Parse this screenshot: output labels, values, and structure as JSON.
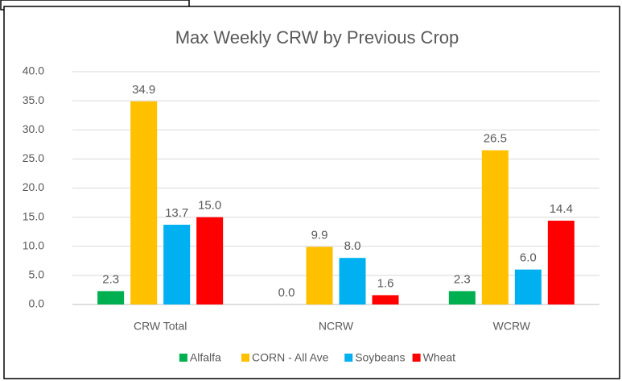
{
  "chart_data": {
    "type": "bar",
    "title": "Max Weekly CRW by Previous Crop",
    "categories": [
      "CRW Total",
      "NCRW",
      "WCRW"
    ],
    "series": [
      {
        "name": "Alfalfa",
        "color": "#00b050",
        "values": [
          2.3,
          0,
          2.3
        ],
        "value_labels": [
          "2.3",
          "0.0",
          "2.3"
        ]
      },
      {
        "name": "CORN - All Ave",
        "color": "#ffc000",
        "values": [
          34.9,
          9.9,
          26.5
        ],
        "value_labels": [
          "34.9",
          "9.9",
          "26.5"
        ]
      },
      {
        "name": "Soybeans",
        "color": "#00b0f0",
        "values": [
          13.7,
          8.0,
          6.0
        ],
        "value_labels": [
          "13.7",
          "8.0",
          "6.0"
        ]
      },
      {
        "name": "Wheat",
        "color": "#ff0000",
        "values": [
          15.0,
          1.6,
          14.4
        ],
        "value_labels": [
          "15.0",
          "1.6",
          "14.4"
        ]
      }
    ],
    "ylim": [
      0,
      40
    ],
    "yticks": [
      {
        "value": 0,
        "label": "0.0"
      },
      {
        "value": 5,
        "label": "5.0"
      },
      {
        "value": 10,
        "label": "10.0"
      },
      {
        "value": 15,
        "label": "15.0"
      },
      {
        "value": 20,
        "label": "20.0"
      },
      {
        "value": 25,
        "label": "25.0"
      },
      {
        "value": 30,
        "label": "30.0"
      },
      {
        "value": 35,
        "label": "35.0"
      },
      {
        "value": 40,
        "label": "40.0"
      }
    ],
    "grid": true,
    "legend": "bottom"
  }
}
